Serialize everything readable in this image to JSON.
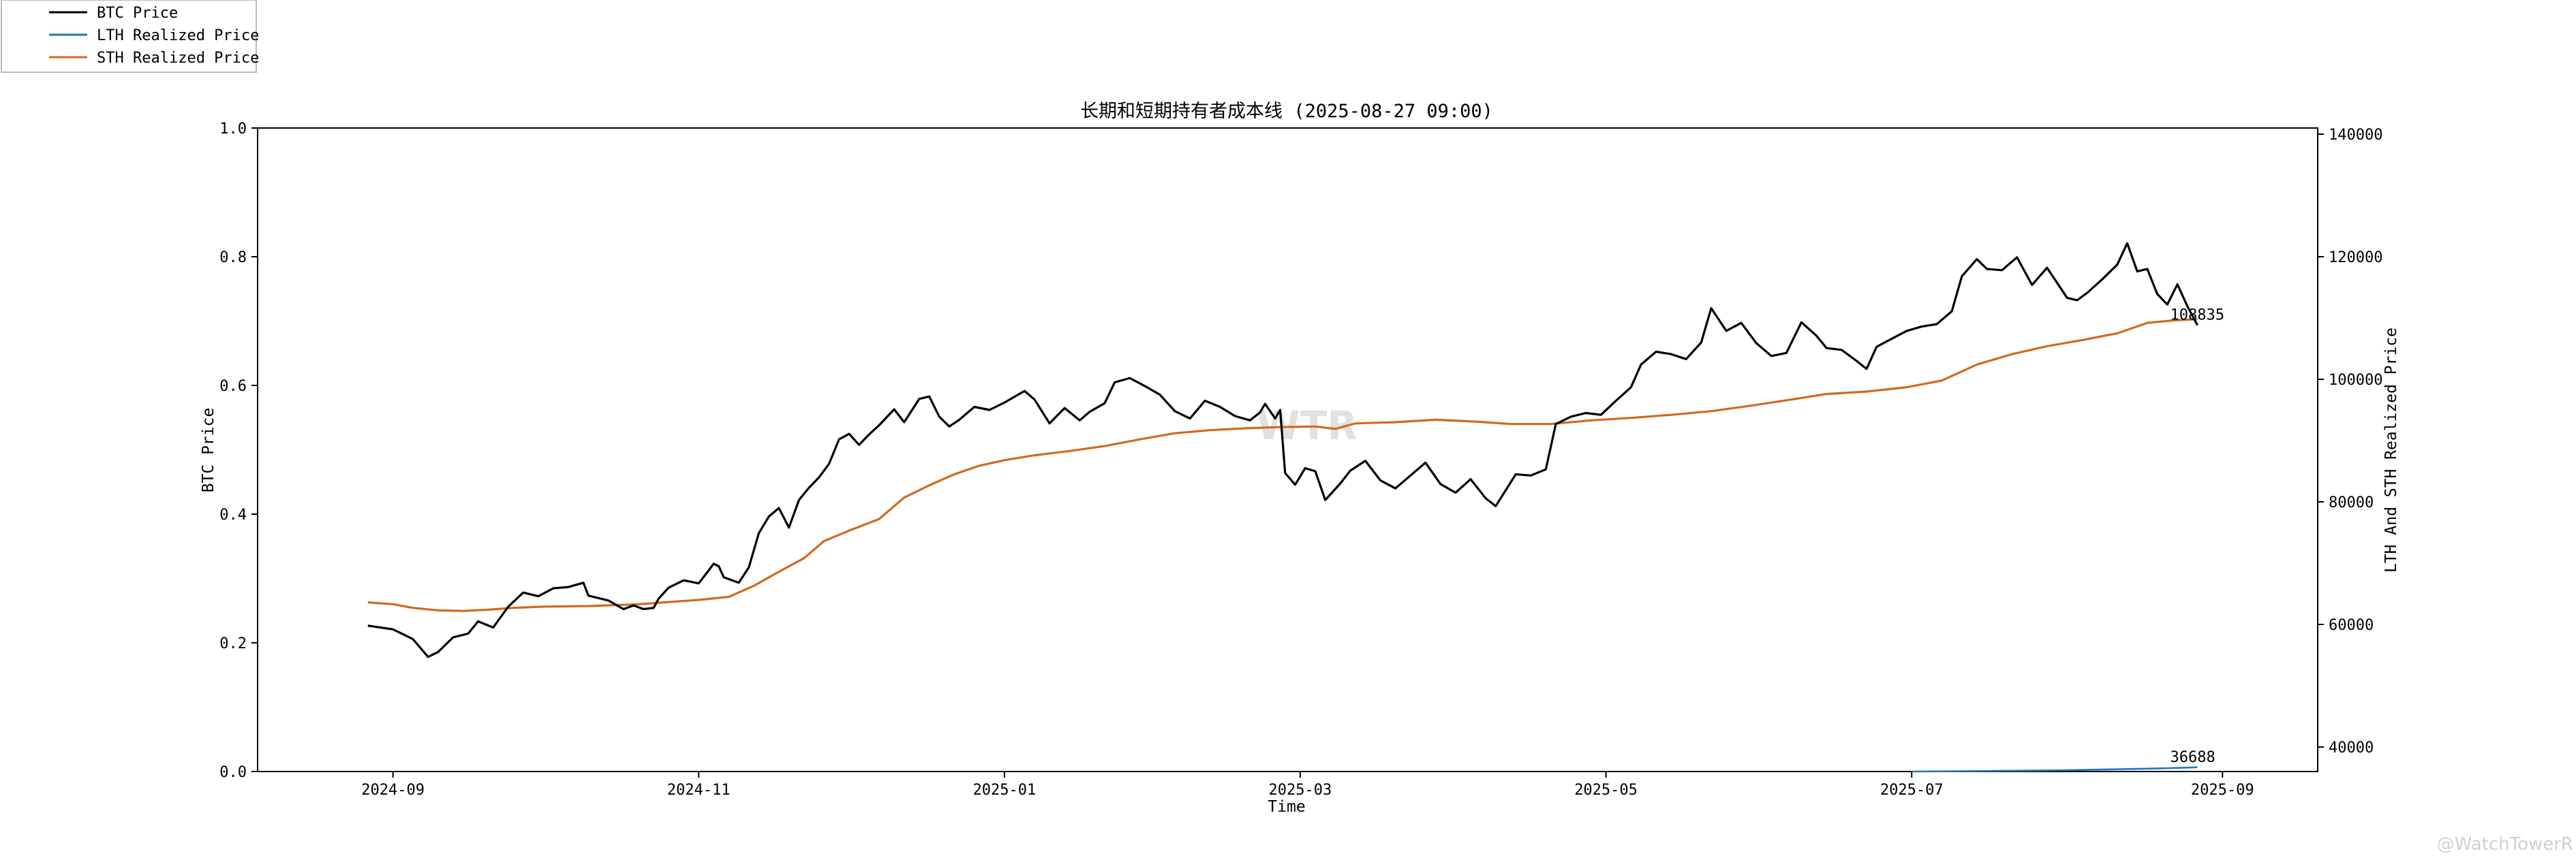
{
  "chart_data": {
    "type": "line",
    "title": "长期和短期持有者成本线 (2025-08-27 09:00)",
    "xlabel": "Time",
    "ylabel_left": "BTC Price",
    "ylabel_right": "LTH And STH Realized Price",
    "x_range": [
      "2024-08-05",
      "2025-09-20"
    ],
    "left_ylim": [
      0,
      1.0
    ],
    "right_ylim": [
      36000,
      141000
    ],
    "x_ticks": [
      "2024-09",
      "2024-11",
      "2025-01",
      "2025-03",
      "2025-05",
      "2025-07",
      "2025-09"
    ],
    "left_ticks": [
      "0.0",
      "0.2",
      "0.4",
      "0.6",
      "0.8",
      "1.0"
    ],
    "right_ticks": [
      "40000",
      "60000",
      "80000",
      "100000",
      "120000",
      "140000"
    ],
    "legend_position": "top-left",
    "grid": false,
    "colors": {
      "btc": "#000000",
      "lth": "#1f77b4",
      "sth": "#d2691e"
    },
    "series": [
      {
        "name": "BTC Price",
        "axis": "right",
        "points": [
          [
            "2024-08-27",
            59800
          ],
          [
            "2024-09-01",
            59200
          ],
          [
            "2024-09-05",
            57600
          ],
          [
            "2024-09-08",
            54700
          ],
          [
            "2024-09-10",
            55500
          ],
          [
            "2024-09-13",
            57900
          ],
          [
            "2024-09-16",
            58500
          ],
          [
            "2024-09-18",
            60500
          ],
          [
            "2024-09-21",
            59500
          ],
          [
            "2024-09-24",
            62900
          ],
          [
            "2024-09-27",
            65200
          ],
          [
            "2024-09-30",
            64600
          ],
          [
            "2024-10-03",
            65900
          ],
          [
            "2024-10-06",
            66100
          ],
          [
            "2024-10-09",
            66800
          ],
          [
            "2024-10-10",
            64700
          ],
          [
            "2024-10-14",
            63900
          ],
          [
            "2024-10-17",
            62500
          ],
          [
            "2024-10-19",
            63100
          ],
          [
            "2024-10-21",
            62500
          ],
          [
            "2024-10-23",
            62700
          ],
          [
            "2024-10-24",
            64200
          ],
          [
            "2024-10-26",
            66000
          ],
          [
            "2024-10-29",
            67200
          ],
          [
            "2024-11-01",
            66700
          ],
          [
            "2024-11-04",
            69900
          ],
          [
            "2024-11-05",
            69500
          ],
          [
            "2024-11-06",
            67700
          ],
          [
            "2024-11-09",
            66800
          ],
          [
            "2024-11-11",
            69300
          ],
          [
            "2024-11-13",
            74900
          ],
          [
            "2024-11-15",
            77600
          ],
          [
            "2024-11-17",
            79000
          ],
          [
            "2024-11-19",
            75800
          ],
          [
            "2024-11-21",
            80300
          ],
          [
            "2024-11-23",
            82300
          ],
          [
            "2024-11-25",
            84000
          ],
          [
            "2024-11-27",
            86200
          ],
          [
            "2024-11-29",
            90200
          ],
          [
            "2024-12-01",
            91100
          ],
          [
            "2024-12-03",
            89300
          ],
          [
            "2024-12-05",
            91000
          ],
          [
            "2024-12-07",
            92500
          ],
          [
            "2024-12-10",
            95100
          ],
          [
            "2024-12-12",
            93000
          ],
          [
            "2024-12-15",
            96800
          ],
          [
            "2024-12-17",
            97200
          ],
          [
            "2024-12-19",
            93900
          ],
          [
            "2024-12-21",
            92300
          ],
          [
            "2024-12-23",
            93400
          ],
          [
            "2024-12-26",
            95500
          ],
          [
            "2024-12-29",
            95000
          ],
          [
            "2025-01-01",
            96200
          ],
          [
            "2025-01-05",
            98100
          ],
          [
            "2025-01-07",
            96700
          ],
          [
            "2025-01-10",
            92800
          ],
          [
            "2025-01-13",
            95300
          ],
          [
            "2025-01-16",
            93300
          ],
          [
            "2025-01-18",
            94700
          ],
          [
            "2025-01-21",
            96100
          ],
          [
            "2025-01-23",
            99500
          ],
          [
            "2025-01-26",
            100200
          ],
          [
            "2025-01-29",
            98900
          ],
          [
            "2025-02-01",
            97500
          ],
          [
            "2025-02-04",
            94800
          ],
          [
            "2025-02-07",
            93600
          ],
          [
            "2025-02-10",
            96500
          ],
          [
            "2025-02-13",
            95500
          ],
          [
            "2025-02-16",
            94000
          ],
          [
            "2025-02-19",
            93300
          ],
          [
            "2025-02-21",
            94600
          ],
          [
            "2025-02-22",
            96000
          ],
          [
            "2025-02-24",
            93600
          ],
          [
            "2025-02-25",
            95000
          ],
          [
            "2025-02-26",
            84700
          ],
          [
            "2025-02-28",
            82800
          ],
          [
            "2025-03-02",
            85500
          ],
          [
            "2025-03-04",
            85000
          ],
          [
            "2025-03-06",
            80300
          ],
          [
            "2025-03-09",
            83000
          ],
          [
            "2025-03-11",
            85100
          ],
          [
            "2025-03-14",
            86700
          ],
          [
            "2025-03-17",
            83500
          ],
          [
            "2025-03-20",
            82200
          ],
          [
            "2025-03-23",
            84300
          ],
          [
            "2025-03-26",
            86400
          ],
          [
            "2025-03-29",
            82900
          ],
          [
            "2025-04-01",
            81500
          ],
          [
            "2025-04-04",
            83700
          ],
          [
            "2025-04-07",
            80600
          ],
          [
            "2025-04-09",
            79300
          ],
          [
            "2025-04-11",
            81900
          ],
          [
            "2025-04-13",
            84500
          ],
          [
            "2025-04-16",
            84300
          ],
          [
            "2025-04-19",
            85300
          ],
          [
            "2025-04-21",
            92700
          ],
          [
            "2025-04-24",
            93900
          ],
          [
            "2025-04-27",
            94500
          ],
          [
            "2025-04-30",
            94200
          ],
          [
            "2025-05-03",
            96500
          ],
          [
            "2025-05-06",
            98700
          ],
          [
            "2025-05-08",
            102400
          ],
          [
            "2025-05-11",
            104500
          ],
          [
            "2025-05-14",
            104100
          ],
          [
            "2025-05-17",
            103300
          ],
          [
            "2025-05-20",
            106000
          ],
          [
            "2025-05-22",
            111600
          ],
          [
            "2025-05-25",
            107900
          ],
          [
            "2025-05-28",
            109200
          ],
          [
            "2025-05-31",
            105900
          ],
          [
            "2025-06-03",
            103800
          ],
          [
            "2025-06-06",
            104300
          ],
          [
            "2025-06-09",
            109300
          ],
          [
            "2025-06-12",
            107100
          ],
          [
            "2025-06-14",
            105100
          ],
          [
            "2025-06-17",
            104800
          ],
          [
            "2025-06-20",
            103000
          ],
          [
            "2025-06-22",
            101700
          ],
          [
            "2025-06-24",
            105300
          ],
          [
            "2025-06-27",
            106600
          ],
          [
            "2025-06-30",
            107900
          ],
          [
            "2025-07-03",
            108600
          ],
          [
            "2025-07-06",
            109000
          ],
          [
            "2025-07-09",
            111100
          ],
          [
            "2025-07-11",
            116800
          ],
          [
            "2025-07-14",
            119600
          ],
          [
            "2025-07-16",
            118000
          ],
          [
            "2025-07-19",
            117800
          ],
          [
            "2025-07-22",
            119900
          ],
          [
            "2025-07-25",
            115400
          ],
          [
            "2025-07-28",
            118200
          ],
          [
            "2025-08-01",
            113300
          ],
          [
            "2025-08-03",
            112900
          ],
          [
            "2025-08-05",
            114100
          ],
          [
            "2025-08-08",
            116300
          ],
          [
            "2025-08-11",
            118700
          ],
          [
            "2025-08-13",
            122200
          ],
          [
            "2025-08-15",
            117600
          ],
          [
            "2025-08-17",
            118000
          ],
          [
            "2025-08-19",
            113900
          ],
          [
            "2025-08-21",
            112200
          ],
          [
            "2025-08-23",
            115500
          ],
          [
            "2025-08-25",
            111900
          ],
          [
            "2025-08-27",
            108835
          ]
        ]
      },
      {
        "name": "LTH Realized Price",
        "axis": "right",
        "points": [
          [
            "2025-07-01",
            36000
          ],
          [
            "2025-07-15",
            36080
          ],
          [
            "2025-07-31",
            36200
          ],
          [
            "2025-08-10",
            36350
          ],
          [
            "2025-08-20",
            36520
          ],
          [
            "2025-08-27",
            36688
          ]
        ]
      },
      {
        "name": "STH Realized Price",
        "axis": "right",
        "points": [
          [
            "2024-08-27",
            63600
          ],
          [
            "2024-09-01",
            63300
          ],
          [
            "2024-09-05",
            62700
          ],
          [
            "2024-09-10",
            62300
          ],
          [
            "2024-09-15",
            62200
          ],
          [
            "2024-09-20",
            62400
          ],
          [
            "2024-09-25",
            62700
          ],
          [
            "2024-10-01",
            62900
          ],
          [
            "2024-10-10",
            63000
          ],
          [
            "2024-10-20",
            63300
          ],
          [
            "2024-10-25",
            63600
          ],
          [
            "2024-11-01",
            64000
          ],
          [
            "2024-11-07",
            64500
          ],
          [
            "2024-11-12",
            66300
          ],
          [
            "2024-11-17",
            68600
          ],
          [
            "2024-11-22",
            70800
          ],
          [
            "2024-11-26",
            73600
          ],
          [
            "2024-12-01",
            75300
          ],
          [
            "2024-12-07",
            77200
          ],
          [
            "2024-12-12",
            80700
          ],
          [
            "2024-12-17",
            82700
          ],
          [
            "2024-12-22",
            84500
          ],
          [
            "2024-12-27",
            85900
          ],
          [
            "2025-01-01",
            86800
          ],
          [
            "2025-01-07",
            87600
          ],
          [
            "2025-01-14",
            88300
          ],
          [
            "2025-01-21",
            89100
          ],
          [
            "2025-01-28",
            90200
          ],
          [
            "2025-02-04",
            91200
          ],
          [
            "2025-02-11",
            91700
          ],
          [
            "2025-02-18",
            92000
          ],
          [
            "2025-02-25",
            92200
          ],
          [
            "2025-03-04",
            92300
          ],
          [
            "2025-03-08",
            91900
          ],
          [
            "2025-03-12",
            92800
          ],
          [
            "2025-03-20",
            93000
          ],
          [
            "2025-03-28",
            93400
          ],
          [
            "2025-04-05",
            93100
          ],
          [
            "2025-04-12",
            92700
          ],
          [
            "2025-04-20",
            92700
          ],
          [
            "2025-04-28",
            93300
          ],
          [
            "2025-05-06",
            93700
          ],
          [
            "2025-05-14",
            94200
          ],
          [
            "2025-05-22",
            94800
          ],
          [
            "2025-05-30",
            95700
          ],
          [
            "2025-06-07",
            96700
          ],
          [
            "2025-06-14",
            97600
          ],
          [
            "2025-06-22",
            98000
          ],
          [
            "2025-06-30",
            98700
          ],
          [
            "2025-07-07",
            99800
          ],
          [
            "2025-07-14",
            102400
          ],
          [
            "2025-07-21",
            104100
          ],
          [
            "2025-07-28",
            105400
          ],
          [
            "2025-08-04",
            106400
          ],
          [
            "2025-08-11",
            107500
          ],
          [
            "2025-08-17",
            109200
          ],
          [
            "2025-08-22",
            109600
          ],
          [
            "2025-08-27",
            109800
          ]
        ]
      }
    ],
    "annotations": [
      {
        "text": "108835",
        "x": "2025-08-27",
        "y": 108835
      },
      {
        "text": "36688",
        "x": "2025-08-27",
        "y": 36688
      }
    ],
    "watermark_center": "WTR",
    "watermark_corner": "@WatchTowerR"
  }
}
